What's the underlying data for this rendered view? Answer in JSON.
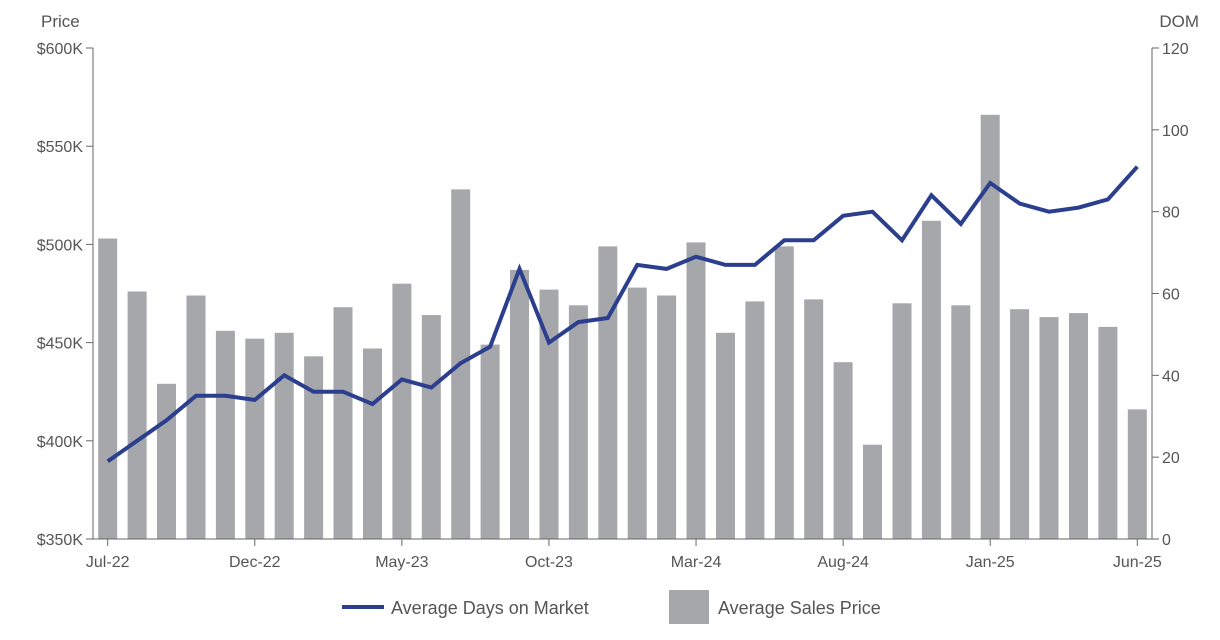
{
  "chart_data": {
    "type": "bar",
    "left_axis_title": "Price",
    "right_axis_title": "DOM",
    "left_ylim": [
      350000,
      600000
    ],
    "right_ylim": [
      0,
      120
    ],
    "left_ticks": [
      "$350K",
      "$400K",
      "$450K",
      "$500K",
      "$550K",
      "$600K"
    ],
    "right_ticks": [
      "0",
      "20",
      "40",
      "60",
      "80",
      "100",
      "120"
    ],
    "x_tick_labels": [
      "Jul-22",
      "Dec-22",
      "May-23",
      "Oct-23",
      "Mar-24",
      "Aug-24",
      "Jan-25",
      "Jun-25"
    ],
    "categories": [
      "Jul-22",
      "Aug-22",
      "Sep-22",
      "Oct-22",
      "Nov-22",
      "Dec-22",
      "Jan-23",
      "Feb-23",
      "Mar-23",
      "Apr-23",
      "May-23",
      "Jun-23",
      "Jul-23",
      "Aug-23",
      "Sep-23",
      "Oct-23",
      "Nov-23",
      "Dec-23",
      "Jan-24",
      "Feb-24",
      "Mar-24",
      "Apr-24",
      "May-24",
      "Jun-24",
      "Jul-24",
      "Aug-24",
      "Sep-24",
      "Oct-24",
      "Nov-24",
      "Dec-24",
      "Jan-25",
      "Feb-25",
      "Mar-25",
      "Apr-25",
      "May-25",
      "Jun-25"
    ],
    "series": [
      {
        "name": "Average Sales Price",
        "kind": "bar",
        "axis": "left",
        "color": "#a6a7ab",
        "values": [
          503000,
          476000,
          429000,
          474000,
          456000,
          452000,
          455000,
          443000,
          468000,
          447000,
          480000,
          464000,
          528000,
          449000,
          487000,
          477000,
          469000,
          499000,
          478000,
          474000,
          501000,
          455000,
          471000,
          499000,
          472000,
          440000,
          398000,
          470000,
          512000,
          469000,
          566000,
          467000,
          463000,
          465000,
          458000,
          416000
        ]
      },
      {
        "name": "Average Days on Market",
        "kind": "line",
        "axis": "right",
        "color": "#2b3f8e",
        "values": [
          19,
          24,
          29,
          35,
          35,
          34,
          40,
          36,
          36,
          33,
          39,
          37,
          43,
          47,
          66,
          48,
          53,
          54,
          67,
          66,
          69,
          67,
          67,
          73,
          73,
          79,
          80,
          73,
          84,
          77,
          87,
          82,
          80,
          81,
          83,
          91
        ]
      }
    ],
    "legend_position": "bottom",
    "grid": false
  }
}
